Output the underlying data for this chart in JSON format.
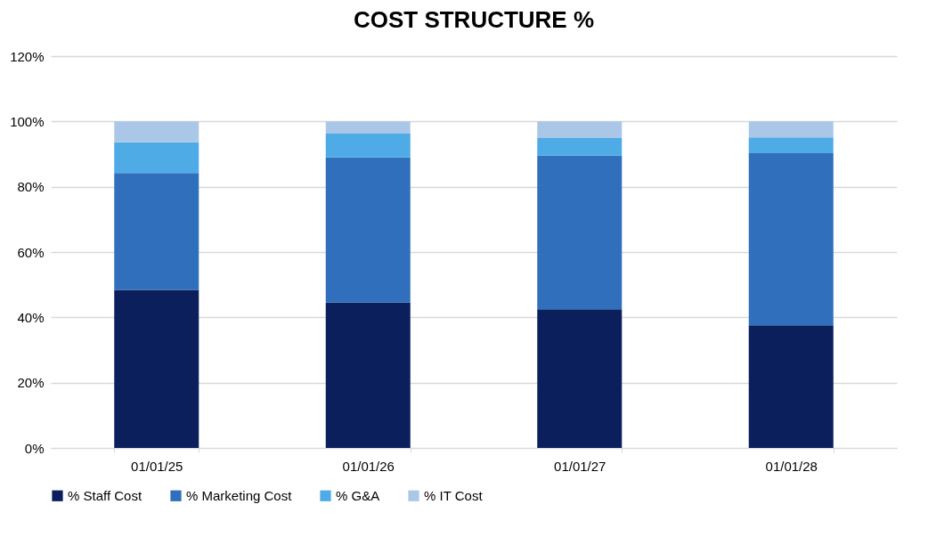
{
  "chart_data": {
    "type": "bar",
    "title": "COST STRUCTURE %",
    "stacked": true,
    "categories": [
      "01/01/25",
      "01/01/26",
      "01/01/27",
      "01/01/28"
    ],
    "series": [
      {
        "name": "% Staff Cost",
        "color": "#0a1f5c",
        "values": [
          48.4,
          44.5,
          42.5,
          37.6
        ]
      },
      {
        "name": "% Marketing Cost",
        "color": "#2f6fbc",
        "values": [
          35.8,
          44.5,
          47.0,
          52.7
        ]
      },
      {
        "name": "% G&A",
        "color": "#4fabe6",
        "values": [
          9.4,
          7.3,
          5.4,
          4.8
        ]
      },
      {
        "name": "% IT Cost",
        "color": "#abc7e8",
        "values": [
          6.4,
          3.7,
          5.1,
          4.9
        ]
      }
    ],
    "ylim": [
      0,
      120
    ],
    "yticks": [
      {
        "value": 0,
        "label": "0%"
      },
      {
        "value": 20,
        "label": "20%"
      },
      {
        "value": 40,
        "label": "40%"
      },
      {
        "value": 60,
        "label": "60%"
      },
      {
        "value": 80,
        "label": "80%"
      },
      {
        "value": 100,
        "label": "100%"
      },
      {
        "value": 120,
        "label": "120%"
      }
    ],
    "grid": "y",
    "legend": "bottom"
  }
}
